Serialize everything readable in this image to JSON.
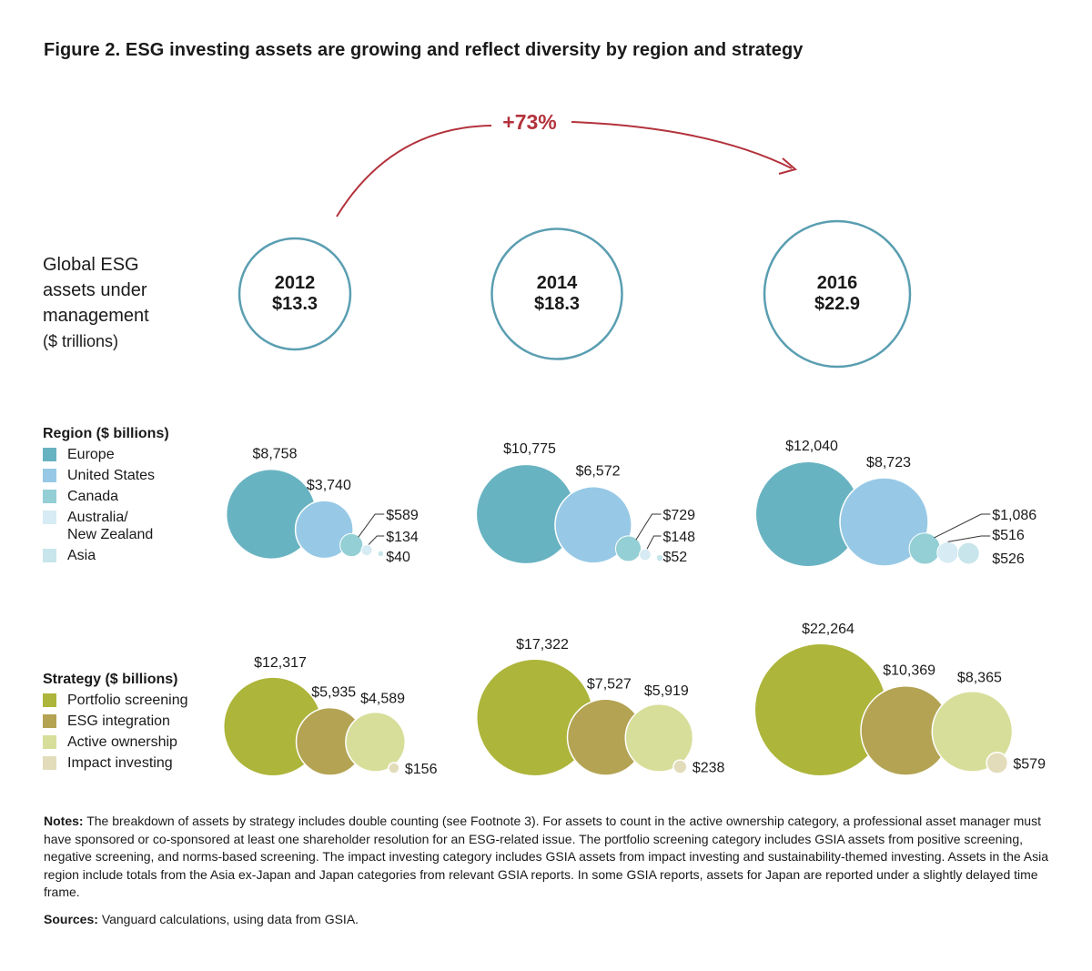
{
  "title": "Figure 2. ESG investing assets are growing and reflect diversity by region and strategy",
  "global_label": {
    "line1": "Global ESG",
    "line2": "assets under",
    "line3": "management",
    "unit": "($ trillions)"
  },
  "growth_label": "+73%",
  "colors": {
    "ring": "#5a9eb1",
    "arrow": "#b3323c",
    "europe": "#68b3c2",
    "united_states": "#97c9e6",
    "canada": "#93cfd4",
    "australia_nz": "#d6ebf3",
    "asia": "#c7e5eb",
    "portfolio_screening": "#adb53a",
    "esg_integration": "#b3a353",
    "active_ownership": "#d7de9a",
    "impact_investing": "#e3dcba"
  },
  "region_legend": {
    "heading": "Region ($ billions)",
    "items": [
      {
        "label": "Europe",
        "color": "#68b3c2"
      },
      {
        "label": "United States",
        "color": "#97c9e6"
      },
      {
        "label": "Canada",
        "color": "#93cfd4"
      },
      {
        "label": "Australia/\nNew Zealand",
        "color": "#d6ebf3"
      },
      {
        "label": "Asia",
        "color": "#c7e5eb"
      }
    ]
  },
  "strategy_legend": {
    "heading": "Strategy ($ billions)",
    "items": [
      {
        "label": "Portfolio screening",
        "color": "#adb53a"
      },
      {
        "label": "ESG integration",
        "color": "#b3a353"
      },
      {
        "label": "Active ownership",
        "color": "#d7de9a"
      },
      {
        "label": "Impact investing",
        "color": "#e3dcba"
      }
    ]
  },
  "chart_data": [
    {
      "type": "bubble",
      "name": "Global ESG assets under management ($ trillions)",
      "categories": [
        "2012",
        "2014",
        "2016"
      ],
      "values": [
        13.3,
        18.3,
        22.9
      ],
      "value_labels": [
        "$13.3",
        "$18.3",
        "$22.9"
      ],
      "annotation": "+73%"
    },
    {
      "type": "bubble",
      "name": "Region ($ billions)",
      "categories": [
        "2012",
        "2014",
        "2016"
      ],
      "series": [
        {
          "name": "Europe",
          "values": [
            8758,
            10775,
            12040
          ],
          "labels": [
            "$8,758",
            "$10,775",
            "$12,040"
          ]
        },
        {
          "name": "United States",
          "values": [
            3740,
            6572,
            8723
          ],
          "labels": [
            "$3,740",
            "$6,572",
            "$8,723"
          ]
        },
        {
          "name": "Canada",
          "values": [
            589,
            729,
            1086
          ],
          "labels": [
            "$589",
            "$729",
            "$1,086"
          ]
        },
        {
          "name": "Australia/New Zealand",
          "values": [
            134,
            148,
            516
          ],
          "labels": [
            "$134",
            "$148",
            "$516"
          ]
        },
        {
          "name": "Asia",
          "values": [
            40,
            52,
            526
          ],
          "labels": [
            "$40",
            "$52",
            "$526"
          ]
        }
      ]
    },
    {
      "type": "bubble",
      "name": "Strategy ($ billions)",
      "categories": [
        "2012",
        "2014",
        "2016"
      ],
      "series": [
        {
          "name": "Portfolio screening",
          "values": [
            12317,
            17322,
            22264
          ],
          "labels": [
            "$12,317",
            "$17,322",
            "$22,264"
          ]
        },
        {
          "name": "ESG integration",
          "values": [
            5935,
            7527,
            10369
          ],
          "labels": [
            "$5,935",
            "$7,527",
            "$10,369"
          ]
        },
        {
          "name": "Active ownership",
          "values": [
            4589,
            5919,
            8365
          ],
          "labels": [
            "$4,589",
            "$5,919",
            "$8,365"
          ]
        },
        {
          "name": "Impact investing",
          "values": [
            156,
            238,
            579
          ],
          "labels": [
            "$156",
            "$238",
            "$579"
          ]
        }
      ]
    }
  ],
  "notes": {
    "label": "Notes:",
    "text": "The breakdown of assets by strategy includes double counting (see Footnote 3). For assets to count in the active ownership category, a professional asset manager must have sponsored or co-sponsored at least one shareholder resolution for an ESG-related issue. The portfolio screening category includes GSIA assets from positive screening, negative screening, and norms-based screening. The impact investing category includes GSIA assets from impact investing and sustainability-themed investing. Assets in the Asia region include totals from the Asia ex-Japan and Japan categories from relevant GSIA reports. In some GSIA reports, assets for Japan are reported under a slightly delayed time frame."
  },
  "sources": {
    "label": "Sources:",
    "text": "Vanguard calculations, using data from GSIA."
  }
}
